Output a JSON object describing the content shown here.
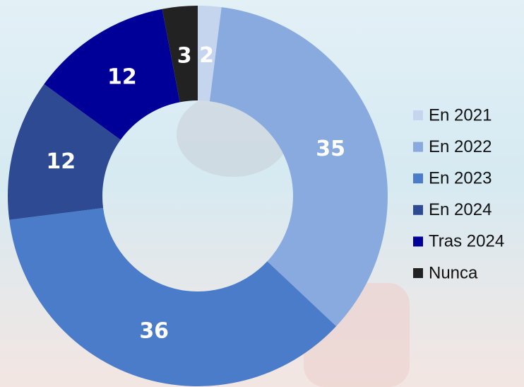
{
  "chart_data": {
    "type": "pie",
    "categories": [
      "En 2021",
      "En 2022",
      "En 2023",
      "En 2024",
      "Tras 2024",
      "Nunca"
    ],
    "values": [
      2,
      35,
      36,
      12,
      12,
      3
    ],
    "colors": [
      "#c5d5ee",
      "#88aade",
      "#4a7cc9",
      "#2d4a93",
      "#000099",
      "#222222"
    ],
    "legend": "right"
  }
}
